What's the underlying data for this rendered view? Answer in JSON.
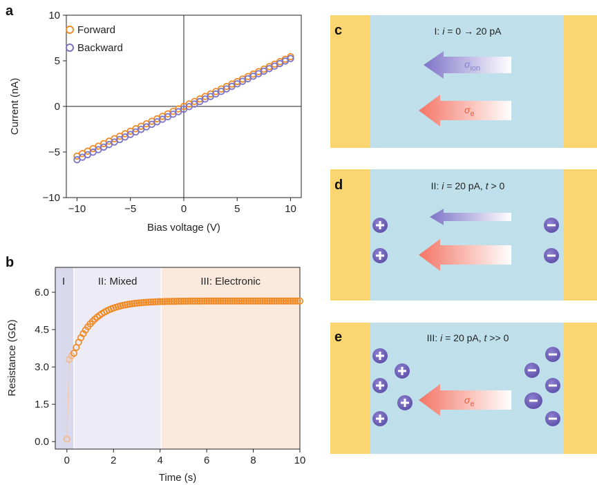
{
  "panels": {
    "a": "a",
    "b": "b",
    "c": "c",
    "d": "d",
    "e": "e"
  },
  "colors": {
    "forward": "#f08a24",
    "backward": "#7a72c4",
    "electrode": "#fbd570",
    "channel": "#bfe0ea",
    "region_I": "#d9d9ee",
    "region_II": "#ecebf6",
    "region_III": "#fbe9dd",
    "ion_charge": "#7a6cbd",
    "arrow_e": "#f47d6f",
    "arrow_ion": "#8a7fd0"
  },
  "chart_data": [
    {
      "type": "scatter",
      "xlabel": "Bias voltage (V)",
      "ylabel": "Current (nA)",
      "xlim": [
        -11,
        11
      ],
      "ylim": [
        -10,
        10
      ],
      "xticks": [
        -10,
        -5,
        0,
        5,
        10
      ],
      "yticks": [
        -10,
        -5,
        0,
        5,
        10
      ],
      "xtick_labels": [
        "−10",
        "−5",
        "0",
        "5",
        "10"
      ],
      "ytick_labels": [
        "−10",
        "−5",
        "0",
        "5",
        "10"
      ],
      "legend_placement": "top-left",
      "grid": false,
      "series": [
        {
          "name": "Forward",
          "marker": "open-circle",
          "color": "#f08a24",
          "x_range": [
            -10,
            10
          ],
          "step": 0.5,
          "slope": 0.545,
          "intercept": 0.0
        },
        {
          "name": "Backward",
          "marker": "open-circle",
          "color": "#7a72c4",
          "x_range": [
            -10,
            10
          ],
          "step": 0.5,
          "slope": 0.555,
          "intercept": -0.3
        }
      ]
    },
    {
      "type": "scatter",
      "xlabel": "Time (s)",
      "ylabel": "Resistance (GΩ)",
      "xlim": [
        -0.5,
        10
      ],
      "ylim": [
        -0.3,
        7.0
      ],
      "xticks": [
        0,
        2,
        4,
        6,
        8,
        10
      ],
      "yticks": [
        0.0,
        1.5,
        3.0,
        4.5,
        6.0
      ],
      "xtick_labels": [
        "0",
        "2",
        "4",
        "6",
        "8",
        "10"
      ],
      "ytick_labels": [
        "0.0",
        "1.5",
        "3.0",
        "4.5",
        "6.0"
      ],
      "regions": [
        {
          "label": "I",
          "from": -0.5,
          "to": 0.3
        },
        {
          "label": "II: Mixed",
          "from": 0.3,
          "to": 4.05
        },
        {
          "label": "III: Electronic",
          "from": 4.05,
          "to": 10
        }
      ],
      "series": [
        {
          "name": "",
          "marker": "open-circle",
          "color": "#f08a24",
          "early_points": [
            [
              0.0,
              0.1
            ],
            [
              0.1,
              3.3
            ],
            [
              0.2,
              3.45
            ],
            [
              0.3,
              3.55
            ]
          ],
          "model": {
            "t0": 0.3,
            "r0": 3.55,
            "rinf": 5.65,
            "tau": 0.85,
            "step": 0.1,
            "t_end": 10
          }
        }
      ]
    }
  ],
  "diagrams": {
    "c": {
      "caption_pre": "I: ",
      "caption_i": "i",
      "caption_post": " = 0 → 20 pA",
      "arrow_ion_label": "σ",
      "arrow_ion_sub": "ion",
      "arrow_e_label": "σ",
      "arrow_e_sub": "e"
    },
    "d": {
      "caption_pre": "II: ",
      "caption_i": "i",
      "caption_mid": " = 20 pA, ",
      "caption_t": "t",
      "caption_post": " > 0",
      "plus": "+",
      "minus": "−"
    },
    "e": {
      "caption_pre": "III: ",
      "caption_i": "i",
      "caption_mid": " = 20 pA, ",
      "caption_t": "t",
      "caption_post": " >> 0",
      "arrow_e_label": "σ",
      "arrow_e_sub": "e",
      "plus": "+",
      "minus": "−"
    }
  }
}
